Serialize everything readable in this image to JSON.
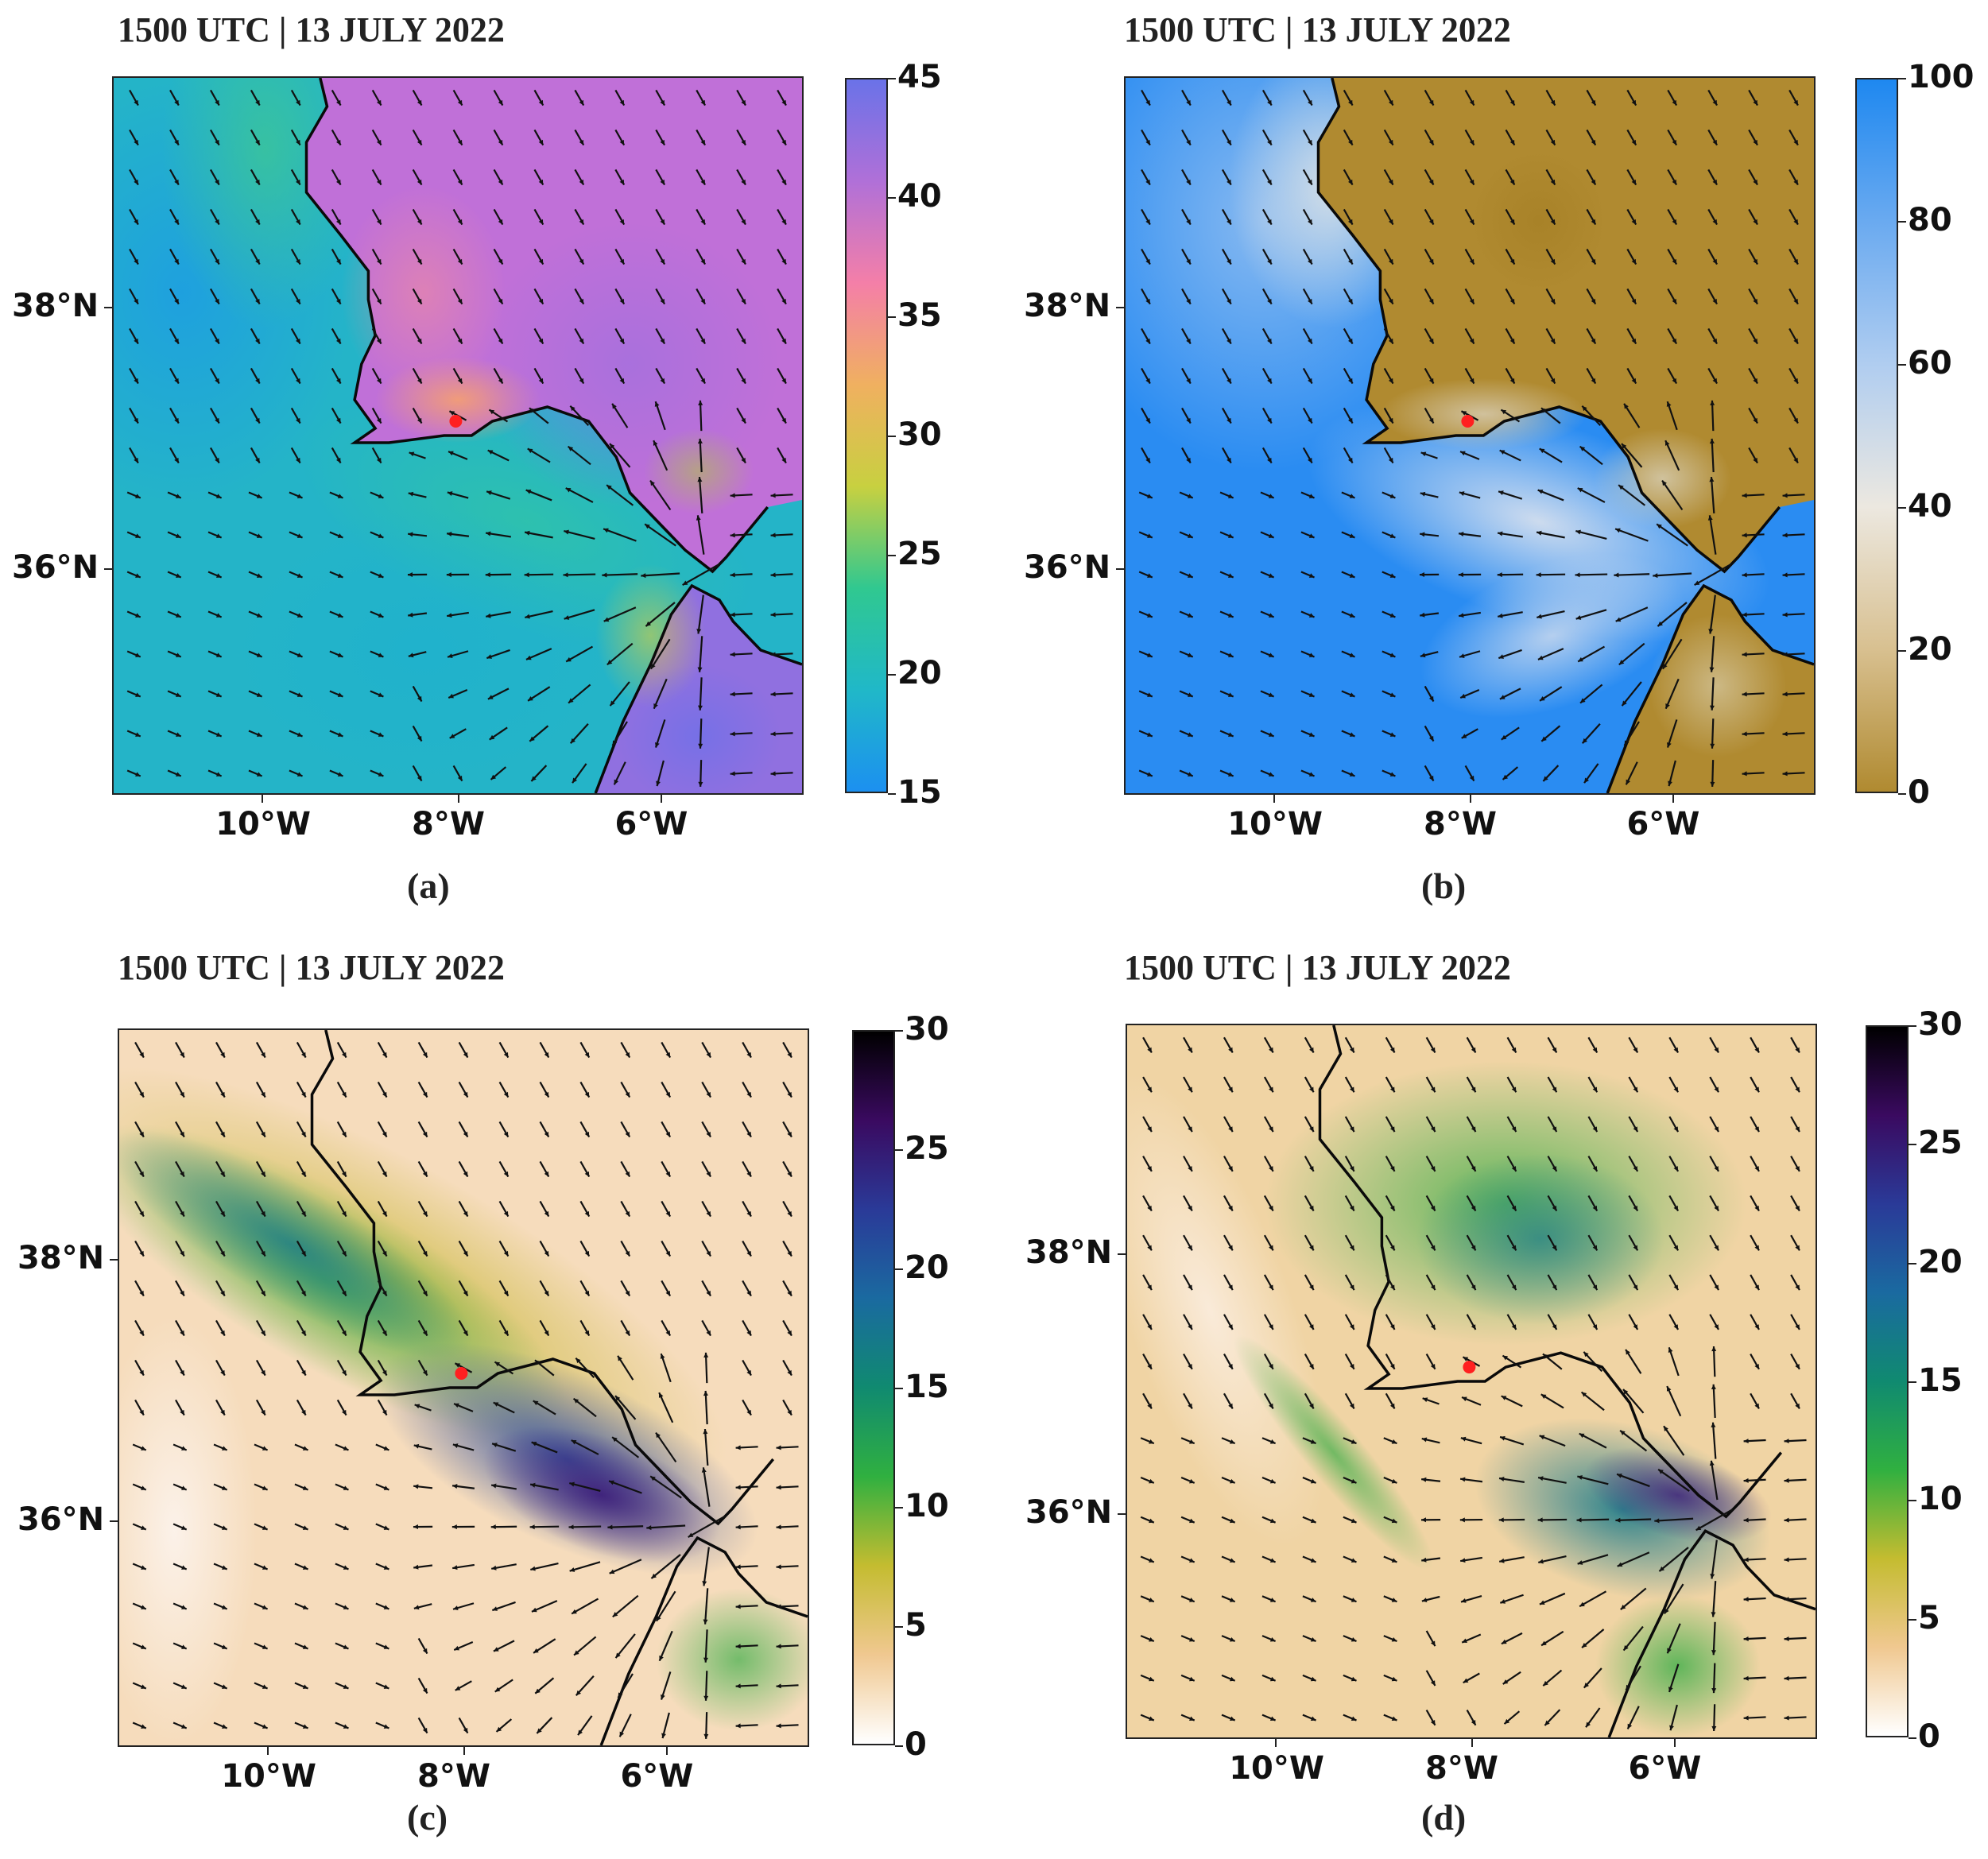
{
  "panels": [
    {
      "id": "a",
      "title": "1500 UTC | 13 JULY 2022",
      "label": "(a)",
      "lat_labels": [
        "38°N",
        "36°N"
      ],
      "lon_labels": [
        "10°W",
        "8°W",
        "6°W"
      ],
      "colorbar": {
        "ticks": [
          "45",
          "40",
          "35",
          "30",
          "25",
          "20",
          "15"
        ],
        "colors": [
          "#6a72e8",
          "#b070d8",
          "#f47fa8",
          "#f0b060",
          "#c8d040",
          "#30c890",
          "#20b8c8",
          "#1c90f0"
        ]
      },
      "colors": {
        "land": "#c070d8",
        "land_hot": "#f08ca0",
        "coast_warm": "#f5a070",
        "sea": "#24b4c8",
        "sea_warm": "#30c4a8",
        "africa": "#9070e0"
      }
    },
    {
      "id": "b",
      "title": "1500 UTC | 13 JULY 2022",
      "label": "(b)",
      "lat_labels": [
        "38°N",
        "36°N"
      ],
      "lon_labels": [
        "10°W",
        "8°W",
        "6°W"
      ],
      "colorbar": {
        "ticks": [
          "100",
          "80",
          "60",
          "40",
          "20",
          "0"
        ],
        "colors": [
          "#1e88f0",
          "#6aaaf0",
          "#b0cdf0",
          "#ece8e0",
          "#d8c090",
          "#b08a30"
        ]
      },
      "colors": {
        "land": "#b08a30",
        "coast": "#d4c7a8",
        "sea": "#2a8cf2",
        "sea_light": "#9ec4f0",
        "near_coast": "#dfe4ee"
      }
    },
    {
      "id": "c",
      "title": "1500 UTC | 13 JULY 2022",
      "label": "(c)",
      "lat_labels": [
        "38°N",
        "36°N"
      ],
      "lon_labels": [
        "10°W",
        "8°W",
        "6°W"
      ],
      "colorbar": {
        "ticks": [
          "30",
          "25",
          "20",
          "15",
          "10",
          "5",
          "0"
        ],
        "colors": [
          "#000000",
          "#3a0a60",
          "#2a3a98",
          "#1a6aa0",
          "#108a70",
          "#30b040",
          "#c4bc30",
          "#f0c890",
          "#ffffff"
        ]
      },
      "colors": {
        "calm": "#f6dcbc",
        "white": "#fcf4ee",
        "olive": "#c8b838",
        "green": "#3cae48",
        "teal": "#1a7a8a",
        "blue": "#2a4a9a",
        "purple": "#3a1a78"
      }
    },
    {
      "id": "d",
      "title": "1500 UTC | 13 JULY 2022",
      "label": "(d)",
      "lat_labels": [
        "38°N",
        "36°N"
      ],
      "lon_labels": [
        "10°W",
        "8°W",
        "6°W"
      ],
      "colorbar": {
        "ticks": [
          "30",
          "25",
          "20",
          "15",
          "10",
          "5",
          "0"
        ],
        "colors": [
          "#000000",
          "#3a0a60",
          "#2a3a98",
          "#1a6aa0",
          "#108a70",
          "#30b040",
          "#c4bc30",
          "#f0c890",
          "#ffffff"
        ]
      },
      "colors": {
        "calm": "#f0d4a4",
        "white": "#fcf0e6",
        "olive": "#c8b838",
        "green": "#3cae48",
        "teal": "#1a7a8a",
        "blue": "#2a4a9a",
        "purple": "#3a1a78"
      }
    }
  ],
  "marker_color": "#ff2020",
  "arrow_color": "#111111",
  "coast_color": "#0a0a0a"
}
